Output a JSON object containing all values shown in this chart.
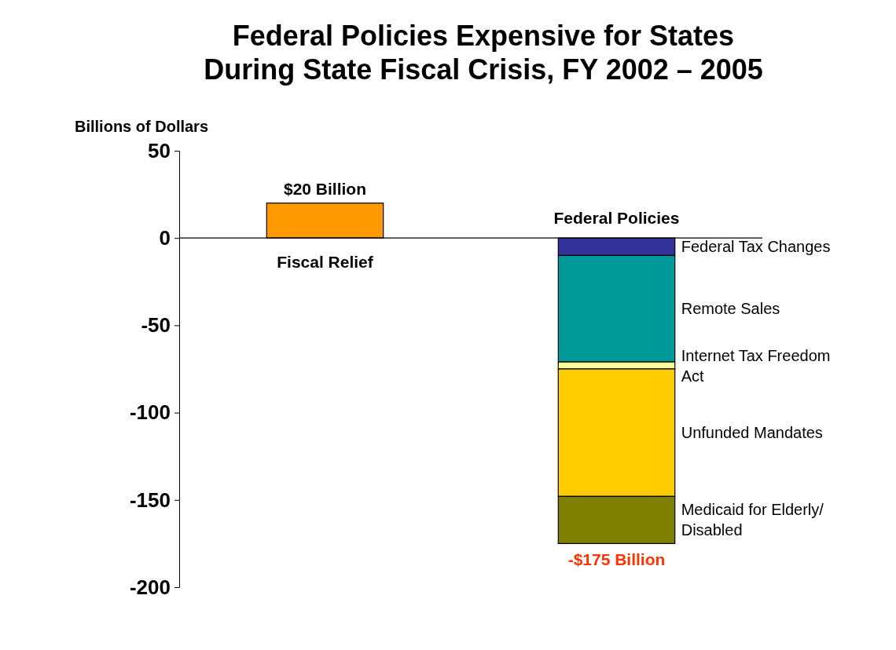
{
  "chart_data": {
    "type": "bar",
    "title": "Federal Policies Expensive for States\nDuring State Fiscal Crisis, FY 2002 – 2005",
    "ylabel": "Billions of Dollars",
    "categories": [
      "Fiscal Relief",
      "Federal Policies"
    ],
    "stacked": true,
    "series": [
      {
        "color": "#ff9900",
        "values": [
          20,
          null
        ]
      },
      {
        "name": "Federal Tax Changes",
        "color": "#333399",
        "values": [
          null,
          -10
        ]
      },
      {
        "name": "Remote Sales",
        "color": "#009999",
        "values": [
          null,
          -61
        ]
      },
      {
        "name": "Internet Tax Freedom Act",
        "color": "#ffff99",
        "values": [
          null,
          -4
        ]
      },
      {
        "name": "Unfunded Mandates",
        "color": "#ffcc00",
        "values": [
          null,
          -73
        ]
      },
      {
        "name": "Medicaid for Elderly/ Disabled",
        "color": "#808000",
        "values": [
          null,
          -27
        ]
      }
    ],
    "totals": [
      "$20 Billion",
      "-$175 Billion"
    ],
    "ylim": [
      -200,
      50
    ],
    "yticks": [
      50,
      0,
      -50,
      -100,
      -150,
      -200
    ],
    "tick_labels": "y"
  }
}
